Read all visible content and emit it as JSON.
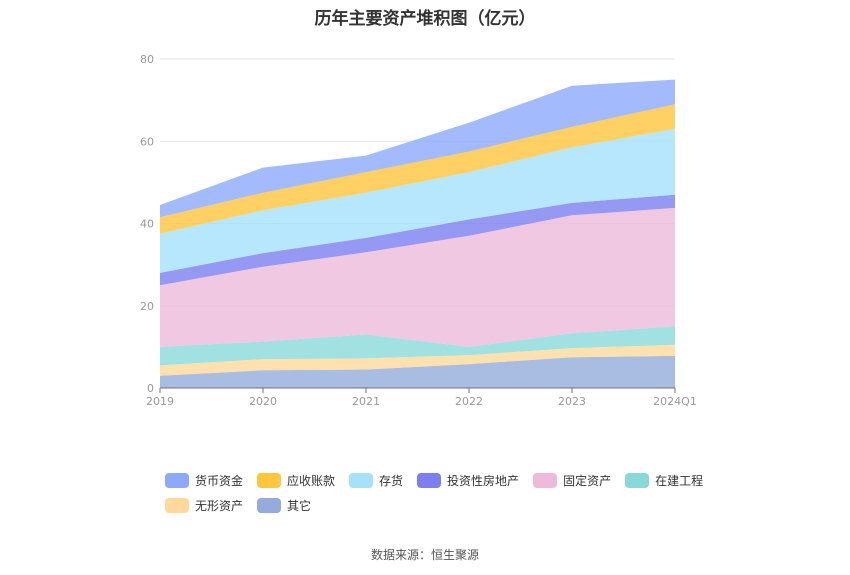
{
  "chart_data": {
    "type": "area",
    "stacked": true,
    "title": "历年主要资产堆积图（亿元）",
    "x": [
      "2019",
      "2020",
      "2021",
      "2022",
      "2023",
      "2024Q1"
    ],
    "y_ticks": [
      "0",
      "20",
      "40",
      "60",
      "80"
    ],
    "ylim": [
      0,
      80
    ],
    "grid": true,
    "legend_position": "bottom",
    "series": [
      {
        "name": "其它",
        "color": "#93acdc",
        "values": [
          3.0,
          4.3,
          4.5,
          5.8,
          7.5,
          7.8
        ]
      },
      {
        "name": "无形资产",
        "color": "#ffd99b",
        "values": [
          2.5,
          2.7,
          2.7,
          2.2,
          2.2,
          2.7
        ]
      },
      {
        "name": "在建工程",
        "color": "#8ad9d9",
        "values": [
          4.5,
          4.3,
          5.8,
          2.0,
          3.6,
          4.5
        ]
      },
      {
        "name": "固定资产",
        "color": "#eebada",
        "values": [
          15.0,
          18.2,
          20.0,
          27.0,
          28.7,
          28.8
        ]
      },
      {
        "name": "投资性房地产",
        "color": "#7b7ff0",
        "values": [
          3.0,
          3.3,
          3.5,
          4.0,
          3.0,
          3.2
        ]
      },
      {
        "name": "存货",
        "color": "#a5e1fb",
        "values": [
          9.5,
          10.4,
          11.0,
          11.5,
          13.5,
          16.0
        ]
      },
      {
        "name": "应收账款",
        "color": "#ffc63e",
        "values": [
          4.0,
          4.3,
          5.0,
          5.0,
          5.0,
          6.0
        ]
      },
      {
        "name": "货币资金",
        "color": "#8ca9fb",
        "values": [
          3.0,
          6.1,
          4.0,
          7.0,
          10.0,
          6.0
        ]
      }
    ]
  },
  "legend": {
    "items": [
      "货币资金",
      "应收账款",
      "存货",
      "投资性房地产",
      "固定资产",
      "在建工程",
      "无形资产",
      "其它"
    ],
    "colors": [
      "#8ca9fb",
      "#ffc63e",
      "#a5e1fb",
      "#7b7ff0",
      "#eebada",
      "#8ad9d9",
      "#ffd99b",
      "#93acdc"
    ]
  },
  "footer": {
    "source": "数据来源：恒生聚源"
  }
}
